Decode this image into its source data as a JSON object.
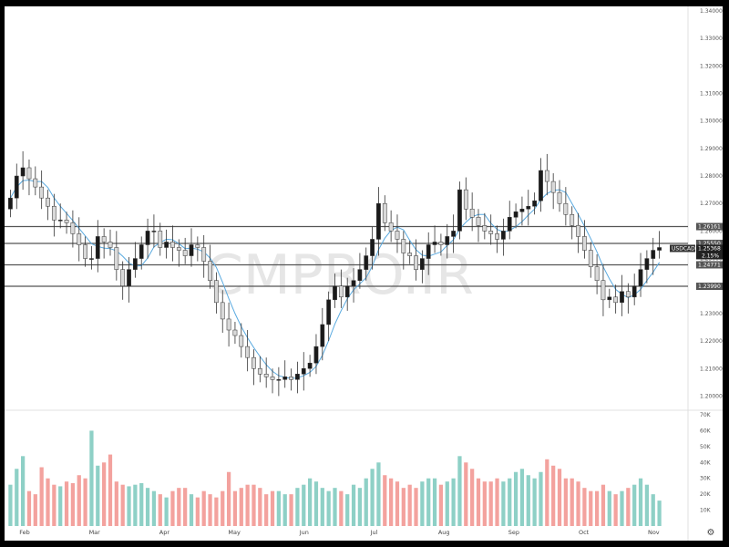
{
  "watermark": "CMPRO.IR",
  "symbol": "USDCAD",
  "colors": {
    "up": "#1a1a1a",
    "down": "#d9d9d9",
    "ma": "#5aaae0",
    "level_line": "#555555",
    "vol_up": "#8ed0c6",
    "vol_down": "#f3a29e"
  },
  "gear_icon": "settings-gear-icon",
  "chart_data": {
    "type": "candlestick",
    "price_axis": {
      "range": [
        1.1955,
        1.341
      ],
      "ticks": [
        "1.20000",
        "1.21000",
        "1.22000",
        "1.23000",
        "1.24000",
        "1.25000",
        "1.26000",
        "1.27000",
        "1.28000",
        "1.29000",
        "1.30000",
        "1.31000",
        "1.32000",
        "1.33000",
        "1.34000"
      ]
    },
    "volume_axis": {
      "range": [
        0,
        70
      ],
      "ticks": [
        "10K",
        "20K",
        "30K",
        "40K",
        "50K",
        "60K",
        "70K"
      ]
    },
    "months": [
      "Feb",
      "Mar",
      "Apr",
      "May",
      "Jun",
      "Jul",
      "Aug",
      "Sep",
      "Oct",
      "Nov"
    ],
    "levels": [
      {
        "value": 1.26161,
        "label": "1.26161"
      },
      {
        "value": 1.2555,
        "label": "1.25550"
      },
      {
        "value": 1.24771,
        "label": "1.24771"
      },
      {
        "value": 1.2399,
        "label": "1.23990"
      }
    ],
    "last_price": {
      "value": 1.25368,
      "label": "1.25368",
      "change": "2.15%"
    },
    "closes": [
      1.272,
      1.28,
      1.283,
      1.279,
      1.276,
      1.272,
      1.269,
      1.264,
      1.264,
      1.263,
      1.259,
      1.255,
      1.25,
      1.25,
      1.258,
      1.256,
      1.254,
      1.246,
      1.24,
      1.246,
      1.25,
      1.255,
      1.26,
      1.26,
      1.254,
      1.256,
      1.254,
      1.253,
      1.251,
      1.255,
      1.254,
      1.249,
      1.242,
      1.234,
      1.228,
      1.224,
      1.222,
      1.218,
      1.214,
      1.21,
      1.208,
      1.207,
      1.206,
      1.206,
      1.207,
      1.206,
      1.208,
      1.21,
      1.212,
      1.218,
      1.226,
      1.235,
      1.24,
      1.236,
      1.24,
      1.242,
      1.246,
      1.251,
      1.257,
      1.27,
      1.263,
      1.26,
      1.257,
      1.252,
      1.251,
      1.246,
      1.25,
      1.255,
      1.256,
      1.255,
      1.258,
      1.26,
      1.275,
      1.268,
      1.265,
      1.262,
      1.26,
      1.259,
      1.257,
      1.26,
      1.265,
      1.267,
      1.268,
      1.269,
      1.271,
      1.282,
      1.278,
      1.274,
      1.27,
      1.266,
      1.262,
      1.258,
      1.253,
      1.247,
      1.242,
      1.235,
      1.236,
      1.234,
      1.238,
      1.236,
      1.24,
      1.246,
      1.25,
      1.253,
      1.254
    ],
    "volume": [
      26,
      36,
      44,
      22,
      20,
      37,
      30,
      26,
      25,
      28,
      27,
      32,
      30,
      60,
      38,
      40,
      45,
      28,
      26,
      25,
      26,
      27,
      24,
      22,
      20,
      18,
      22,
      24,
      24,
      20,
      18,
      22,
      20,
      18,
      22,
      34,
      22,
      24,
      26,
      26,
      24,
      20,
      22,
      22,
      20,
      20,
      24,
      26,
      30,
      28,
      24,
      22,
      24,
      22,
      20,
      26,
      24,
      30,
      36,
      40,
      32,
      30,
      28,
      24,
      26,
      24,
      28,
      30,
      30,
      26,
      28,
      30,
      44,
      40,
      36,
      30,
      28,
      28,
      30,
      28,
      30,
      34,
      36,
      32,
      30,
      34,
      42,
      38,
      36,
      30,
      30,
      28,
      24,
      22,
      22,
      26,
      22,
      20,
      22,
      24,
      26,
      30,
      26,
      20,
      16
    ]
  }
}
